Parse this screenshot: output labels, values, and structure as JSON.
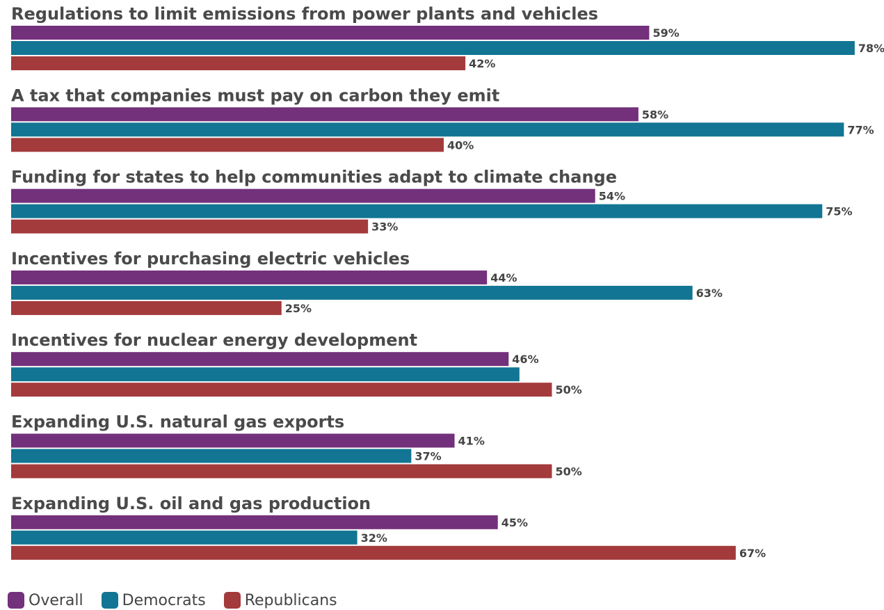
{
  "chart_data": {
    "type": "bar",
    "orientation": "horizontal",
    "categories": [
      "Regulations to limit emissions from power plants and vehicles",
      "A tax that companies must pay on carbon they emit",
      "Funding for states to help communities adapt to climate change",
      "Incentives for purchasing electric vehicles",
      "Incentives for nuclear energy development",
      "Expanding U.S. natural gas exports",
      "Expanding U.S. oil and gas production"
    ],
    "series": [
      {
        "name": "Overall",
        "color": "#73307b",
        "values": [
          59,
          58,
          54,
          44,
          46,
          41,
          45
        ],
        "labels": [
          "59%",
          "58%",
          "54%",
          "44%",
          "46%",
          "41%",
          "45%"
        ]
      },
      {
        "name": "Democrats",
        "color": "#127593",
        "values": [
          78,
          77,
          75,
          63,
          47,
          37,
          32
        ],
        "labels": [
          "78%",
          "77%",
          "75%",
          "63%",
          "",
          "37%",
          "32%"
        ]
      },
      {
        "name": "Republicans",
        "color": "#a33a3c",
        "values": [
          42,
          40,
          33,
          25,
          50,
          50,
          67
        ],
        "labels": [
          "42%",
          "40%",
          "33%",
          "25%",
          "50%",
          "50%",
          "67%"
        ]
      }
    ],
    "xlim": [
      0,
      80
    ],
    "grid": false,
    "legend_position": "bottom-left"
  }
}
